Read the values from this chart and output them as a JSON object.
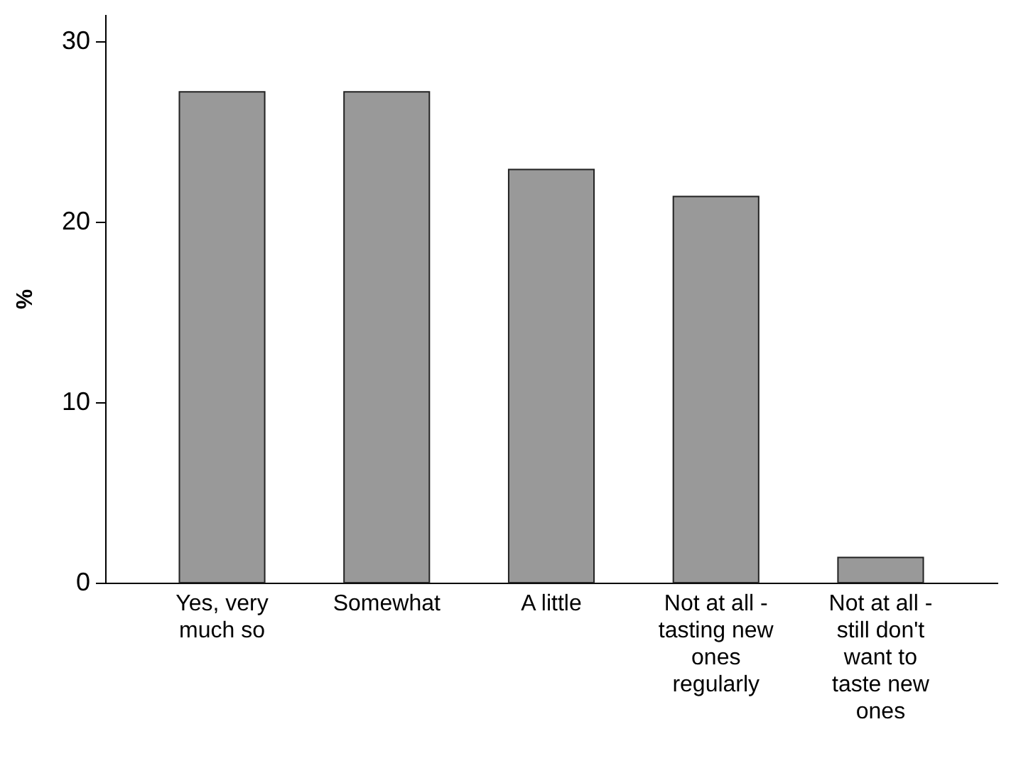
{
  "chart_data": {
    "type": "bar",
    "ylabel": "%",
    "categories": [
      "Yes, very much so",
      "Somewhat",
      "A little",
      "Not at all - tasting new ones regularly",
      "Not at all - still don't want to taste new ones"
    ],
    "values": [
      27.2,
      27.2,
      22.9,
      21.4,
      1.4
    ],
    "color": "#999999",
    "ylim": [
      0,
      31.5
    ],
    "yticks": [
      0,
      10,
      20,
      30
    ],
    "grid": false
  }
}
